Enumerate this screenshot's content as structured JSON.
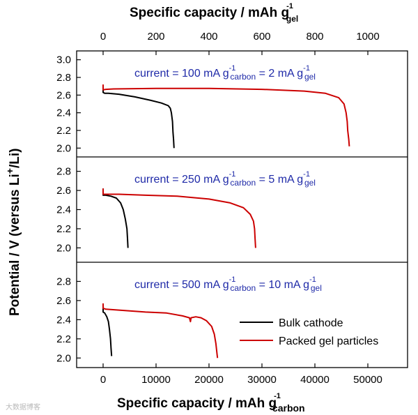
{
  "watermark": "大数据博客",
  "chart_data": {
    "type": "line",
    "title": "",
    "bottom_axis": {
      "label": "Specific capacity / mAh g",
      "label_sub": "carbon",
      "label_sup": "-1",
      "range": [
        -5000,
        57500
      ],
      "ticks": [
        0,
        10000,
        20000,
        30000,
        40000,
        50000
      ]
    },
    "top_axis": {
      "label": "Specific capacity / mAh g",
      "label_sub": "gel",
      "label_sup": "-1",
      "range": [
        -100,
        1150
      ],
      "ticks": [
        0,
        200,
        400,
        600,
        800,
        1000
      ]
    },
    "y_axis": {
      "label": "Potential / V (versus Li",
      "label_sup": "+",
      "label_end": "/Li)"
    },
    "legend": {
      "position": "lower-right of bottom panel",
      "entries": [
        {
          "name": "Bulk cathode",
          "color": "#000000"
        },
        {
          "name": "Packed gel particles",
          "color": "#cc0000"
        }
      ]
    },
    "panels": [
      {
        "ylim": [
          1.9,
          3.1
        ],
        "yticks": [
          2.0,
          2.2,
          2.4,
          2.6,
          2.8,
          3.0
        ],
        "annotation": {
          "prefix": "current = 100 mA g",
          "sup1": "-1",
          "sub1": "carbon",
          "mid": " = 2 mA g",
          "sup2": "-1",
          "sub2": "gel"
        },
        "series": [
          {
            "name": "Bulk cathode",
            "color": "#000000",
            "points": [
              [
                0,
                2.7
              ],
              [
                0,
                2.63
              ],
              [
                300,
                2.62
              ],
              [
                1000,
                2.62
              ],
              [
                3000,
                2.61
              ],
              [
                6000,
                2.58
              ],
              [
                9000,
                2.54
              ],
              [
                11000,
                2.51
              ],
              [
                12300,
                2.48
              ],
              [
                12700,
                2.45
              ],
              [
                12900,
                2.4
              ],
              [
                13100,
                2.3
              ],
              [
                13200,
                2.18
              ],
              [
                13300,
                2.1
              ],
              [
                13400,
                2.0
              ]
            ]
          },
          {
            "name": "Packed gel particles",
            "color": "#cc0000",
            "points": [
              [
                0,
                2.72
              ],
              [
                0,
                2.66
              ],
              [
                500,
                2.665
              ],
              [
                2000,
                2.67
              ],
              [
                10000,
                2.675
              ],
              [
                20000,
                2.675
              ],
              [
                30000,
                2.665
              ],
              [
                38000,
                2.645
              ],
              [
                42000,
                2.62
              ],
              [
                44500,
                2.57
              ],
              [
                45500,
                2.5
              ],
              [
                45900,
                2.4
              ],
              [
                46100,
                2.3
              ],
              [
                46200,
                2.2
              ],
              [
                46400,
                2.1
              ],
              [
                46500,
                2.02
              ]
            ]
          }
        ]
      },
      {
        "ylim": [
          1.85,
          2.95
        ],
        "yticks": [
          2.0,
          2.2,
          2.4,
          2.6,
          2.8
        ],
        "annotation": {
          "prefix": "current = 250 mA g",
          "sup1": "-1",
          "sub1": "carbon",
          "mid": " = 5 mA g",
          "sup2": "-1",
          "sub2": "gel"
        },
        "series": [
          {
            "name": "Bulk cathode",
            "color": "#000000",
            "points": [
              [
                0,
                2.62
              ],
              [
                0,
                2.55
              ],
              [
                500,
                2.55
              ],
              [
                1500,
                2.54
              ],
              [
                2500,
                2.52
              ],
              [
                3300,
                2.47
              ],
              [
                3800,
                2.4
              ],
              [
                4200,
                2.3
              ],
              [
                4500,
                2.2
              ],
              [
                4600,
                2.1
              ],
              [
                4700,
                2.0
              ]
            ]
          },
          {
            "name": "Packed gel particles",
            "color": "#cc0000",
            "points": [
              [
                0,
                2.62
              ],
              [
                0,
                2.56
              ],
              [
                500,
                2.56
              ],
              [
                3000,
                2.56
              ],
              [
                8000,
                2.55
              ],
              [
                14000,
                2.54
              ],
              [
                20000,
                2.51
              ],
              [
                24000,
                2.47
              ],
              [
                26500,
                2.42
              ],
              [
                27800,
                2.35
              ],
              [
                28400,
                2.28
              ],
              [
                28600,
                2.2
              ],
              [
                28700,
                2.1
              ],
              [
                28800,
                2.0
              ]
            ]
          }
        ]
      },
      {
        "ylim": [
          1.9,
          3.0
        ],
        "yticks": [
          2.0,
          2.2,
          2.4,
          2.6,
          2.8
        ],
        "annotation": {
          "prefix": "current = 500 mA g",
          "sup1": "-1",
          "sub1": "carbon",
          "mid": " = 10 mA g",
          "sup2": "-1",
          "sub2": "gel"
        },
        "series": [
          {
            "name": "Bulk cathode",
            "color": "#000000",
            "points": [
              [
                0,
                2.53
              ],
              [
                0,
                2.48
              ],
              [
                300,
                2.47
              ],
              [
                700,
                2.43
              ],
              [
                1000,
                2.38
              ],
              [
                1200,
                2.3
              ],
              [
                1400,
                2.2
              ],
              [
                1500,
                2.1
              ],
              [
                1600,
                2.02
              ]
            ]
          },
          {
            "name": "Packed gel particles",
            "color": "#cc0000",
            "points": [
              [
                0,
                2.57
              ],
              [
                0,
                2.52
              ],
              [
                500,
                2.51
              ],
              [
                3000,
                2.5
              ],
              [
                8000,
                2.48
              ],
              [
                12000,
                2.47
              ],
              [
                15000,
                2.44
              ],
              [
                16300,
                2.42
              ],
              [
                16500,
                2.38
              ],
              [
                16600,
                2.42
              ],
              [
                17500,
                2.43
              ],
              [
                18500,
                2.42
              ],
              [
                19500,
                2.39
              ],
              [
                20500,
                2.33
              ],
              [
                21000,
                2.25
              ],
              [
                21300,
                2.15
              ],
              [
                21500,
                2.05
              ],
              [
                21600,
                2.0
              ]
            ]
          }
        ]
      }
    ]
  }
}
